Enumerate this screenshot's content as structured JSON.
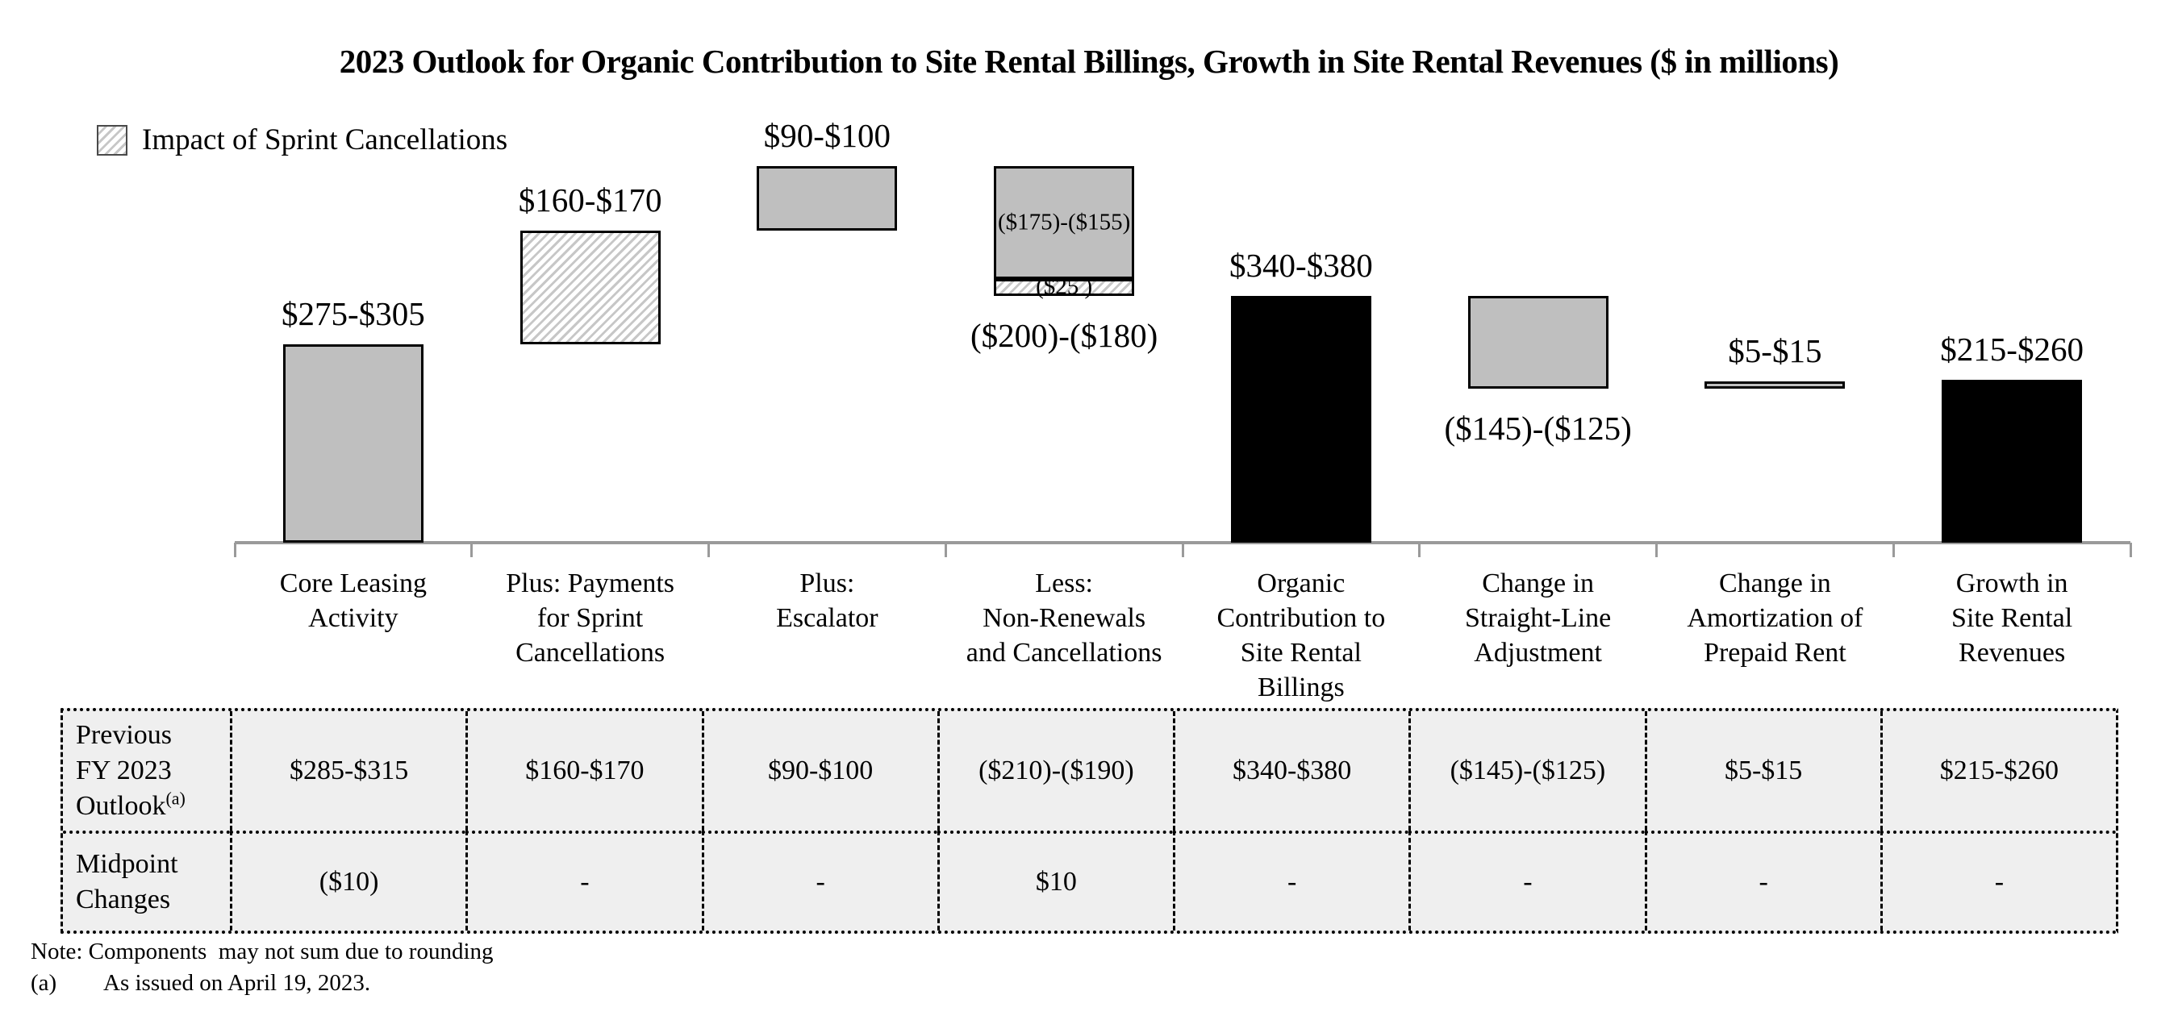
{
  "title": "2023 Outlook for Organic Contribution to Site Rental Billings, Growth in Site Rental Revenues ($ in millions)",
  "legend": {
    "items": [
      {
        "label": "Impact of Sprint Cancellations",
        "fill": "hatch"
      }
    ]
  },
  "colors": {
    "gray_fill": "#bfbfbf",
    "black_fill": "#000000",
    "hatch_line": "#c7c7c7",
    "axis": "#9a9a9a",
    "table_background": "#efefef",
    "border": "#000000"
  },
  "chart_data": {
    "type": "bar",
    "subtype": "waterfall",
    "title": "2023 Outlook for Organic Contribution to Site Rental Billings, Growth in Site Rental Revenues ($ in millions)",
    "unit": "$ in millions",
    "grid": false,
    "legend_position": "top-left",
    "ylim": [
      0,
      600
    ],
    "categories": [
      "Core Leasing Activity",
      "Plus: Payments for Sprint Cancellations",
      "Plus: Escalator",
      "Less: Non-Renewals and Cancellations",
      "Organic Contribution to Site Rental Billings",
      "Change in Straight-Line Adjustment",
      "Change in Amortization of Prepaid Rent",
      "Growth in Site Rental Revenues"
    ],
    "bars": [
      {
        "category_lines": [
          "Core Leasing",
          "Activity"
        ],
        "range_label": "$275-$305",
        "range_label_pos": "above",
        "segments": [
          {
            "fill": "gray",
            "start": 0,
            "end": 290
          }
        ]
      },
      {
        "category_lines": [
          "Plus: Payments",
          "for Sprint",
          "Cancellations"
        ],
        "range_label": "$160-$170",
        "range_label_pos": "above",
        "segments": [
          {
            "fill": "hatch",
            "start": 290,
            "end": 455
          }
        ]
      },
      {
        "category_lines": [
          "Plus:",
          "Escalator"
        ],
        "range_label": "$90-$100",
        "range_label_pos": "above",
        "segments": [
          {
            "fill": "gray",
            "start": 455,
            "end": 550
          }
        ]
      },
      {
        "category_lines": [
          "Less:",
          "Non-Renewals",
          "and Cancellations"
        ],
        "range_label": "($200)-($180)",
        "range_label_pos": "below",
        "segments": [
          {
            "fill": "gray",
            "start": 550,
            "end": 385,
            "inner_label": "($175)-($155)"
          },
          {
            "fill": "hatch",
            "start": 385,
            "end": 360,
            "inner_label": "($25 )"
          }
        ]
      },
      {
        "category_lines": [
          "Organic",
          "Contribution to",
          "Site Rental",
          "Billings"
        ],
        "range_label": "$340-$380",
        "range_label_pos": "above",
        "segments": [
          {
            "fill": "black",
            "start": 0,
            "end": 360
          }
        ]
      },
      {
        "category_lines": [
          "Change in",
          "Straight-Line",
          "Adjustment"
        ],
        "range_label": "($145)-($125)",
        "range_label_pos": "below",
        "segments": [
          {
            "fill": "gray",
            "start": 360,
            "end": 225
          }
        ]
      },
      {
        "category_lines": [
          "Change in",
          "Amortization of",
          "Prepaid Rent"
        ],
        "range_label": "$5-$15",
        "range_label_pos": "above",
        "segments": [
          {
            "fill": "gray",
            "start": 225,
            "end": 235
          }
        ]
      },
      {
        "category_lines": [
          "Growth in",
          "Site Rental",
          "Revenues"
        ],
        "range_label": "$215-$260",
        "range_label_pos": "above",
        "segments": [
          {
            "fill": "black",
            "start": 0,
            "end": 237.5
          }
        ]
      }
    ]
  },
  "table": {
    "rows": [
      {
        "label_lines": [
          "Previous",
          "FY 2023",
          "Outlook"
        ],
        "label_superscript": "(a)",
        "values": [
          "$285-$315",
          "$160-$170",
          "$90-$100",
          "($210)-($190)",
          "$340-$380",
          "($145)-($125)",
          "$5-$15",
          "$215-$260"
        ]
      },
      {
        "label_lines": [
          "Midpoint",
          "Changes"
        ],
        "label_superscript": "",
        "values": [
          "($10)",
          "-",
          "-",
          "$10",
          "-",
          "-",
          "-",
          "-"
        ]
      }
    ]
  },
  "notes": {
    "line1": "Note: Components  may not sum due to rounding",
    "line2_marker": "(a)",
    "line2_text": "As issued on April 19, 2023."
  }
}
